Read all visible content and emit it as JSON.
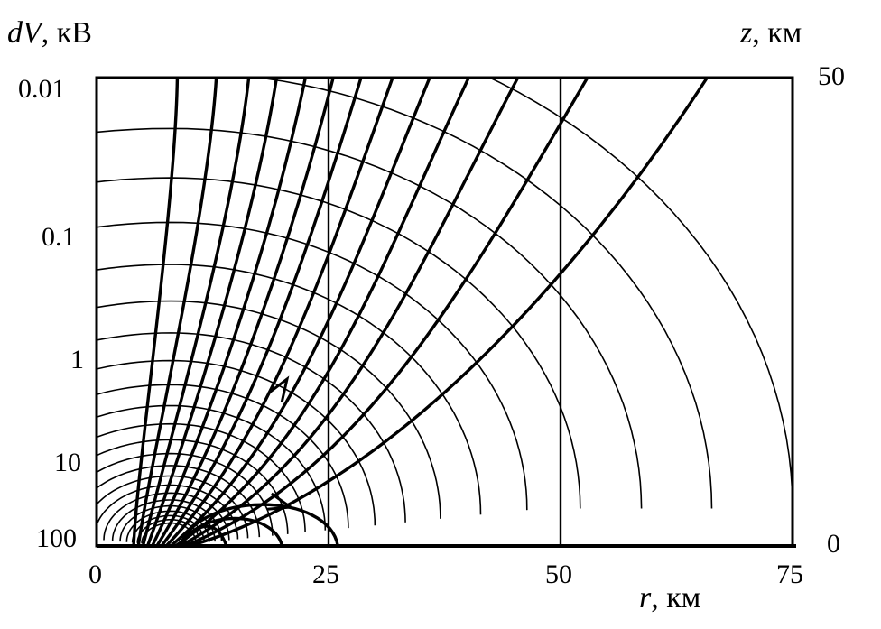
{
  "chart_data": {
    "type": "line",
    "title": "",
    "y_left_label_var": "dV",
    "y_left_label_unit": ", кВ",
    "y_right_label_var": "z",
    "y_right_label_unit": ", км",
    "x_label_var": "r",
    "x_label_unit": ", км",
    "xlim": [
      0,
      75
    ],
    "zlim": [
      0,
      50
    ],
    "x_ticks": [
      "0",
      "25",
      "50",
      "75"
    ],
    "y_right_ticks": [
      "50",
      "0"
    ],
    "y_left_ticks": [
      "0.01",
      "0.1",
      "1",
      "10",
      "100"
    ],
    "vertical_reference_lines_r": [
      25,
      50
    ],
    "field_lines_top_r": [
      8.7,
      12.9,
      16.4,
      19.4,
      22.5,
      25.5,
      28.5,
      31.9,
      35.9,
      40.1,
      45.4,
      52.9,
      65.8
    ],
    "field_line_loops_ground_r": [
      14,
      20,
      26
    ],
    "equipotential_count": 24,
    "source_r": 8,
    "colors": {
      "line": "#000000",
      "background": "#ffffff"
    }
  }
}
